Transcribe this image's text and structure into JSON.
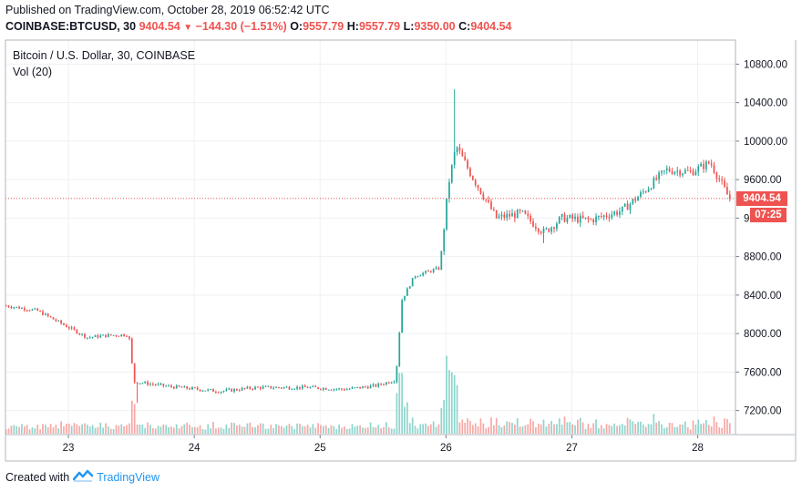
{
  "header": {
    "published": "Published on TradingView.com, October 28, 2019 06:52:42 UTC",
    "symbol": "COINBASE:BTCUSD, 30",
    "last": "9404.54",
    "change": "−144.30 (−1.51%)",
    "o_label": "O:",
    "o_value": "9557.79",
    "h_label": "H:",
    "h_value": "9557.79",
    "l_label": "L:",
    "l_value": "9350.00",
    "c_label": "C:",
    "c_value": "9404.54"
  },
  "legend": {
    "title": "Bitcoin / U.S. Dollar, 30, COINBASE",
    "volume": "Vol (20)"
  },
  "price_tag": "9404.54",
  "time_tag": "07:25",
  "footer": {
    "created": "Created with",
    "brand": "TradingView"
  },
  "colors": {
    "up": "#26a69a",
    "down": "#ef5350",
    "up_vol": "#8fd6cd",
    "down_vol": "#f7a9a7"
  },
  "chart_data": {
    "type": "candlestick",
    "title": "Bitcoin / U.S. Dollar, 30, COINBASE",
    "interval": "30 minutes",
    "yaxis_position": "right",
    "ylim": [
      6950,
      11050
    ],
    "y_ticks": [
      "7200.00",
      "7600.00",
      "8000.00",
      "8400.00",
      "8800.00",
      "9200.00",
      "9600.00",
      "10000.00",
      "10400.00",
      "10800.00"
    ],
    "x_ticks": [
      "23",
      "24",
      "25",
      "26",
      "27",
      "28"
    ],
    "last_price": 9404.54,
    "close_path": [
      {
        "day": 22.5,
        "close": 8290
      },
      {
        "day": 22.75,
        "close": 8240
      },
      {
        "day": 22.95,
        "close": 8100
      },
      {
        "day": 23.15,
        "close": 7960
      },
      {
        "day": 23.3,
        "close": 7980
      },
      {
        "day": 23.48,
        "close": 7990
      },
      {
        "day": 23.52,
        "close": 7500
      },
      {
        "day": 23.8,
        "close": 7450
      },
      {
        "day": 24.2,
        "close": 7400
      },
      {
        "day": 24.5,
        "close": 7440
      },
      {
        "day": 24.9,
        "close": 7440
      },
      {
        "day": 25.2,
        "close": 7420
      },
      {
        "day": 25.45,
        "close": 7460
      },
      {
        "day": 25.6,
        "close": 7520
      },
      {
        "day": 25.65,
        "close": 8350
      },
      {
        "day": 25.75,
        "close": 8600
      },
      {
        "day": 25.95,
        "close": 8680
      },
      {
        "day": 26.02,
        "close": 9550
      },
      {
        "day": 26.08,
        "close": 9950
      },
      {
        "day": 26.2,
        "close": 9650
      },
      {
        "day": 26.4,
        "close": 9200
      },
      {
        "day": 26.6,
        "close": 9250
      },
      {
        "day": 26.78,
        "close": 9050
      },
      {
        "day": 26.92,
        "close": 9200
      },
      {
        "day": 27.15,
        "close": 9180
      },
      {
        "day": 27.4,
        "close": 9280
      },
      {
        "day": 27.55,
        "close": 9450
      },
      {
        "day": 27.75,
        "close": 9700
      },
      {
        "day": 27.95,
        "close": 9680
      },
      {
        "day": 28.1,
        "close": 9780
      },
      {
        "day": 28.25,
        "close": 9404.54
      }
    ]
  }
}
